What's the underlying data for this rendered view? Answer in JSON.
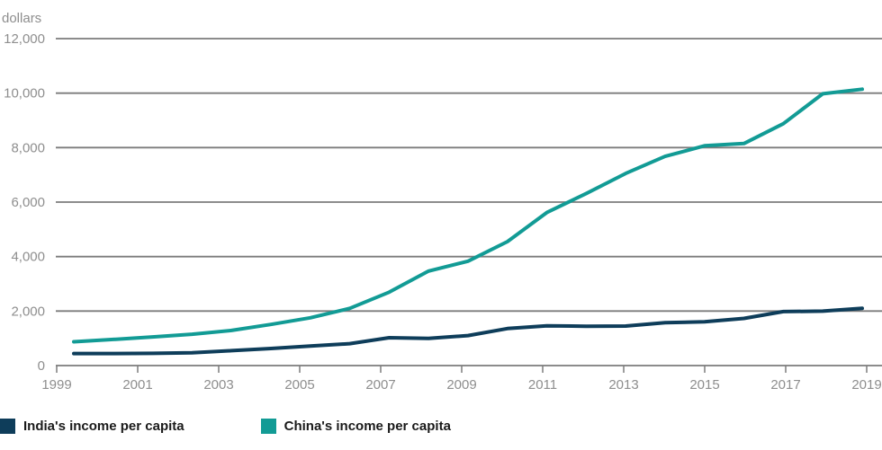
{
  "colors": {
    "background": "#ffffff",
    "grid": "#7c7c7c",
    "axis_text": "#8e8e8e",
    "legend_text": "#1a1a1a"
  },
  "chart_data": {
    "type": "line",
    "title": "",
    "ylabel": "dollars",
    "xlabel": "",
    "x": [
      1999,
      2000,
      2001,
      2002,
      2003,
      2004,
      2005,
      2006,
      2007,
      2008,
      2009,
      2010,
      2011,
      2012,
      2013,
      2014,
      2015,
      2016,
      2017,
      2018,
      2019
    ],
    "xticks": [
      1999,
      2001,
      2003,
      2005,
      2007,
      2009,
      2011,
      2013,
      2015,
      2017,
      2019
    ],
    "yticks": [
      0,
      2000,
      4000,
      6000,
      8000,
      10000,
      12000
    ],
    "ylim": [
      0,
      12000
    ],
    "grid": "horizontal",
    "legend_position": "bottom",
    "series": [
      {
        "name": "India's income per capita",
        "color": "#0E3D5A",
        "values": [
          441,
          443,
          449,
          470,
          546,
          627,
          715,
          806,
          1022,
          998,
          1101,
          1357,
          1458,
          1443,
          1449,
          1573,
          1605,
          1732,
          1980,
          1997,
          2100
        ]
      },
      {
        "name": "China's income per capita",
        "color": "#129B95",
        "values": [
          873,
          959,
          1053,
          1149,
          1289,
          1509,
          1753,
          2099,
          2694,
          3468,
          3832,
          4550,
          5618,
          6317,
          7051,
          7679,
          8067,
          8148,
          8879,
          9977,
          10144
        ]
      }
    ]
  }
}
